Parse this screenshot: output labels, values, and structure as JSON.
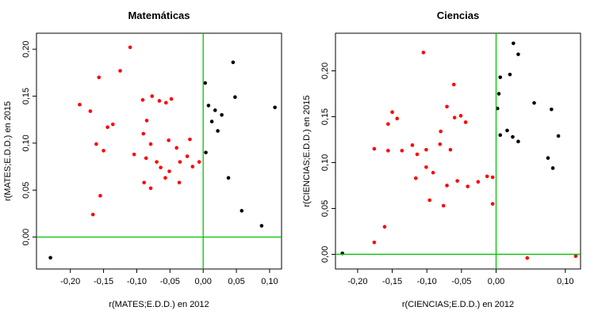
{
  "page": {
    "background": "#ffffff"
  },
  "colors": {
    "point_red": "#ff0000",
    "point_black": "#000000",
    "zero_line_green": "#00c400",
    "axis": "#000000"
  },
  "chart_data": [
    {
      "type": "scatter",
      "title": "Matemáticas",
      "xlabel": "r(MATES;E.D.D.) en 2012",
      "ylabel": "r(MATES;E.D.D.) en 2015",
      "xlim": [
        -0.251,
        0.118
      ],
      "ylim": [
        -0.034,
        0.217
      ],
      "grid": false,
      "legend": "none",
      "zero_lines": {
        "x": 0,
        "y": 0
      },
      "xticks": {
        "values": [
          -0.2,
          -0.15,
          -0.1,
          -0.05,
          0.0,
          0.05,
          0.1
        ],
        "labels": [
          "-0,20",
          "-0,15",
          "-0,10",
          "-0,05",
          "0,00",
          "0,05",
          "0,10"
        ]
      },
      "yticks": {
        "values": [
          0.0,
          0.05,
          0.1,
          0.15,
          0.2
        ],
        "labels": [
          "0,00",
          "0,05",
          "0,10",
          "0,15",
          "0,20"
        ]
      },
      "series": [
        {
          "name": "negative-2012",
          "color": "#ff0000",
          "points": [
            [
              -0.11,
              0.202
            ],
            [
              -0.125,
              0.177
            ],
            [
              -0.157,
              0.17
            ],
            [
              -0.186,
              0.141
            ],
            [
              -0.17,
              0.134
            ],
            [
              -0.136,
              0.12
            ],
            [
              -0.161,
              0.099
            ],
            [
              -0.15,
              0.092
            ],
            [
              -0.144,
              0.117
            ],
            [
              -0.091,
              0.146
            ],
            [
              -0.077,
              0.15
            ],
            [
              -0.066,
              0.145
            ],
            [
              -0.056,
              0.143
            ],
            [
              -0.048,
              0.147
            ],
            [
              -0.085,
              0.124
            ],
            [
              -0.09,
              0.11
            ],
            [
              -0.079,
              0.099
            ],
            [
              -0.052,
              0.103
            ],
            [
              -0.04,
              0.095
            ],
            [
              -0.104,
              0.088
            ],
            [
              -0.086,
              0.084
            ],
            [
              -0.07,
              0.08
            ],
            [
              -0.064,
              0.074
            ],
            [
              -0.051,
              0.07
            ],
            [
              -0.057,
              0.063
            ],
            [
              -0.089,
              0.058
            ],
            [
              -0.079,
              0.052
            ],
            [
              -0.035,
              0.08
            ],
            [
              -0.024,
              0.086
            ],
            [
              -0.016,
              0.075
            ],
            [
              -0.02,
              0.104
            ],
            [
              -0.155,
              0.044
            ],
            [
              -0.166,
              0.024
            ],
            [
              -0.006,
              0.08
            ],
            [
              -0.036,
              0.058
            ]
          ]
        },
        {
          "name": "positive-2012",
          "color": "#000000",
          "points": [
            [
              0.003,
              0.164
            ],
            [
              0.045,
              0.186
            ],
            [
              0.008,
              0.14
            ],
            [
              0.018,
              0.135
            ],
            [
              0.028,
              0.13
            ],
            [
              0.013,
              0.123
            ],
            [
              0.048,
              0.149
            ],
            [
              0.022,
              0.113
            ],
            [
              0.004,
              0.09
            ],
            [
              0.108,
              0.138
            ],
            [
              0.038,
              0.063
            ],
            [
              0.058,
              0.028
            ],
            [
              0.088,
              0.012
            ],
            [
              -0.23,
              -0.022
            ]
          ]
        }
      ]
    },
    {
      "type": "scatter",
      "title": "Ciencias",
      "xlabel": "r(CIENCIAS;E.D.D.) en 2012",
      "ylabel": "r(CIENCIAS;E.D.D.) en 2015",
      "xlim": [
        -0.232,
        0.122
      ],
      "ylim": [
        -0.016,
        0.241
      ],
      "grid": false,
      "legend": "none",
      "zero_lines": {
        "x": 0,
        "y": 0
      },
      "xticks": {
        "values": [
          -0.2,
          -0.15,
          -0.1,
          -0.05,
          0.0,
          0.1
        ],
        "labels": [
          "-0,20",
          "-0,15",
          "-0,10",
          "-0,05",
          "0,00",
          "0,10"
        ]
      },
      "yticks": {
        "values": [
          0.0,
          0.05,
          0.1,
          0.15,
          0.2
        ],
        "labels": [
          "0,00",
          "0,05",
          "0,10",
          "0,15",
          "0,20"
        ]
      },
      "series": [
        {
          "name": "negative-2012",
          "color": "#ff0000",
          "points": [
            [
              -0.105,
              0.22
            ],
            [
              -0.061,
              0.185
            ],
            [
              -0.15,
              0.155
            ],
            [
              -0.143,
              0.148
            ],
            [
              -0.156,
              0.142
            ],
            [
              -0.071,
              0.161
            ],
            [
              -0.051,
              0.151
            ],
            [
              -0.044,
              0.144
            ],
            [
              -0.06,
              0.149
            ],
            [
              -0.176,
              0.115
            ],
            [
              -0.156,
              0.113
            ],
            [
              -0.136,
              0.113
            ],
            [
              -0.121,
              0.119
            ],
            [
              -0.114,
              0.109
            ],
            [
              -0.101,
              0.114
            ],
            [
              -0.081,
              0.12
            ],
            [
              -0.066,
              0.114
            ],
            [
              -0.08,
              0.134
            ],
            [
              -0.101,
              0.095
            ],
            [
              -0.091,
              0.089
            ],
            [
              -0.116,
              0.083
            ],
            [
              -0.071,
              0.075
            ],
            [
              -0.056,
              0.08
            ],
            [
              -0.041,
              0.074
            ],
            [
              -0.026,
              0.079
            ],
            [
              -0.013,
              0.085
            ],
            [
              -0.005,
              0.084
            ],
            [
              -0.096,
              0.059
            ],
            [
              -0.076,
              0.053
            ],
            [
              -0.161,
              0.03
            ],
            [
              -0.176,
              0.013
            ],
            [
              -0.005,
              0.055
            ],
            [
              0.045,
              -0.004
            ],
            [
              0.115,
              -0.002
            ]
          ]
        },
        {
          "name": "positive-2012",
          "color": "#000000",
          "points": [
            [
              0.025,
              0.23
            ],
            [
              0.032,
              0.218
            ],
            [
              0.006,
              0.193
            ],
            [
              0.02,
              0.196
            ],
            [
              0.004,
              0.175
            ],
            [
              0.002,
              0.159
            ],
            [
              0.006,
              0.13
            ],
            [
              0.016,
              0.135
            ],
            [
              0.024,
              0.128
            ],
            [
              0.032,
              0.123
            ],
            [
              0.055,
              0.165
            ],
            [
              0.08,
              0.158
            ],
            [
              0.09,
              0.129
            ],
            [
              0.075,
              0.105
            ],
            [
              0.082,
              0.094
            ],
            [
              -0.222,
              0.001
            ]
          ]
        }
      ]
    }
  ]
}
